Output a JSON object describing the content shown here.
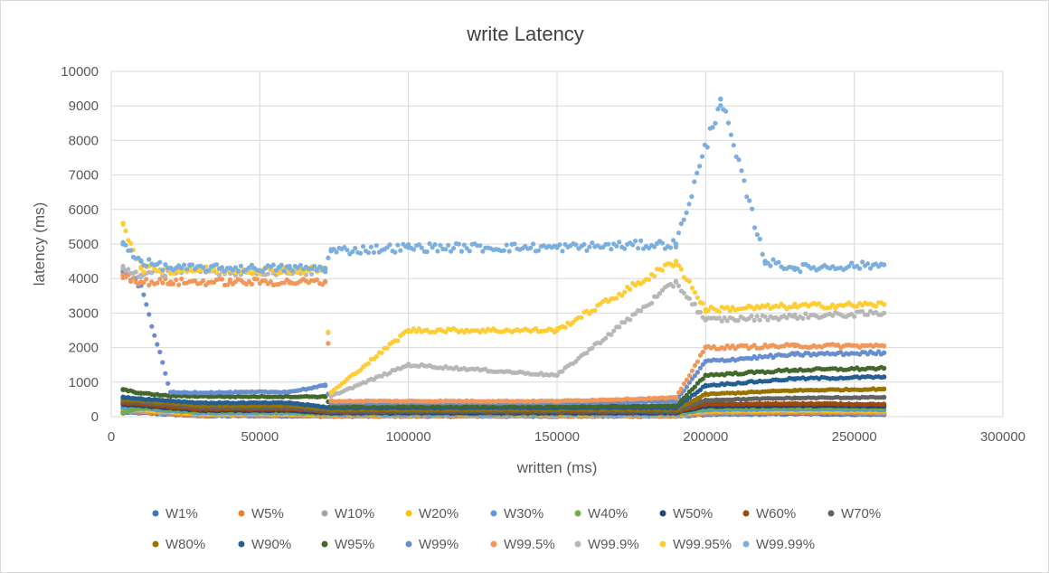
{
  "chart_data": {
    "type": "scatter",
    "title": "write Latency",
    "xlabel": "written (ms)",
    "ylabel": "latency (ms)",
    "xlim": [
      0,
      300000
    ],
    "ylim": [
      0,
      10000
    ],
    "x_ticks": [
      0,
      50000,
      100000,
      150000,
      200000,
      250000,
      300000
    ],
    "y_ticks": [
      0,
      1000,
      2000,
      3000,
      4000,
      5000,
      6000,
      7000,
      8000,
      9000,
      10000
    ],
    "grid": true,
    "legend_position": "bottom",
    "series": [
      {
        "name": "W1%",
        "color": "#4472C4",
        "points": [
          [
            4000,
            120
          ],
          [
            10000,
            110
          ],
          [
            30000,
            20
          ],
          [
            60000,
            20
          ],
          [
            74000,
            10
          ],
          [
            100000,
            10
          ],
          [
            150000,
            10
          ],
          [
            190000,
            10
          ],
          [
            200000,
            60
          ],
          [
            230000,
            80
          ],
          [
            260000,
            60
          ]
        ]
      },
      {
        "name": "W5%",
        "color": "#ED7D31",
        "points": [
          [
            4000,
            150
          ],
          [
            10000,
            130
          ],
          [
            30000,
            30
          ],
          [
            60000,
            30
          ],
          [
            74000,
            20
          ],
          [
            100000,
            20
          ],
          [
            150000,
            20
          ],
          [
            190000,
            20
          ],
          [
            200000,
            90
          ],
          [
            230000,
            110
          ],
          [
            260000,
            90
          ]
        ]
      },
      {
        "name": "W10%",
        "color": "#A5A5A5",
        "points": [
          [
            4000,
            180
          ],
          [
            10000,
            160
          ],
          [
            30000,
            50
          ],
          [
            60000,
            50
          ],
          [
            74000,
            30
          ],
          [
            100000,
            30
          ],
          [
            150000,
            30
          ],
          [
            190000,
            30
          ],
          [
            200000,
            120
          ],
          [
            230000,
            140
          ],
          [
            260000,
            120
          ]
        ]
      },
      {
        "name": "W20%",
        "color": "#FFC000",
        "points": [
          [
            4000,
            220
          ],
          [
            10000,
            200
          ],
          [
            30000,
            80
          ],
          [
            60000,
            80
          ],
          [
            74000,
            50
          ],
          [
            100000,
            50
          ],
          [
            150000,
            50
          ],
          [
            190000,
            50
          ],
          [
            200000,
            160
          ],
          [
            230000,
            180
          ],
          [
            260000,
            160
          ]
        ]
      },
      {
        "name": "W30%",
        "color": "#5B9BD5",
        "points": [
          [
            4000,
            260
          ],
          [
            10000,
            240
          ],
          [
            30000,
            110
          ],
          [
            60000,
            110
          ],
          [
            74000,
            70
          ],
          [
            100000,
            70
          ],
          [
            150000,
            70
          ],
          [
            190000,
            70
          ],
          [
            200000,
            200
          ],
          [
            230000,
            220
          ],
          [
            260000,
            200
          ]
        ]
      },
      {
        "name": "W40%",
        "color": "#70AD47",
        "points": [
          [
            4000,
            100
          ],
          [
            10000,
            280
          ],
          [
            30000,
            140
          ],
          [
            60000,
            140
          ],
          [
            74000,
            90
          ],
          [
            100000,
            90
          ],
          [
            150000,
            90
          ],
          [
            190000,
            90
          ],
          [
            200000,
            250
          ],
          [
            230000,
            270
          ],
          [
            260000,
            250
          ]
        ]
      },
      {
        "name": "W50%",
        "color": "#264478",
        "points": [
          [
            4000,
            350
          ],
          [
            10000,
            320
          ],
          [
            30000,
            180
          ],
          [
            60000,
            180
          ],
          [
            74000,
            110
          ],
          [
            100000,
            110
          ],
          [
            150000,
            110
          ],
          [
            190000,
            110
          ],
          [
            200000,
            300
          ],
          [
            230000,
            320
          ],
          [
            260000,
            300
          ]
        ]
      },
      {
        "name": "W60%",
        "color": "#9E480E",
        "points": [
          [
            4000,
            400
          ],
          [
            10000,
            370
          ],
          [
            30000,
            220
          ],
          [
            60000,
            220
          ],
          [
            74000,
            140
          ],
          [
            100000,
            140
          ],
          [
            150000,
            140
          ],
          [
            190000,
            140
          ],
          [
            200000,
            360
          ],
          [
            230000,
            380
          ],
          [
            260000,
            360
          ]
        ]
      },
      {
        "name": "W70%",
        "color": "#636363",
        "points": [
          [
            4000,
            450
          ],
          [
            10000,
            420
          ],
          [
            30000,
            270
          ],
          [
            60000,
            270
          ],
          [
            74000,
            170
          ],
          [
            100000,
            170
          ],
          [
            150000,
            170
          ],
          [
            190000,
            170
          ],
          [
            200000,
            480
          ],
          [
            230000,
            540
          ],
          [
            260000,
            560
          ]
        ]
      },
      {
        "name": "W80%",
        "color": "#997300",
        "points": [
          [
            4000,
            500
          ],
          [
            10000,
            470
          ],
          [
            30000,
            330
          ],
          [
            60000,
            330
          ],
          [
            74000,
            210
          ],
          [
            100000,
            210
          ],
          [
            150000,
            210
          ],
          [
            190000,
            210
          ],
          [
            200000,
            650
          ],
          [
            230000,
            760
          ],
          [
            260000,
            800
          ]
        ]
      },
      {
        "name": "W90%",
        "color": "#255E91",
        "points": [
          [
            4000,
            560
          ],
          [
            10000,
            520
          ],
          [
            30000,
            400
          ],
          [
            60000,
            400
          ],
          [
            74000,
            260
          ],
          [
            100000,
            260
          ],
          [
            150000,
            260
          ],
          [
            190000,
            260
          ],
          [
            200000,
            900
          ],
          [
            230000,
            1100
          ],
          [
            260000,
            1150
          ]
        ]
      },
      {
        "name": "W95%",
        "color": "#43682B",
        "points": [
          [
            4000,
            780
          ],
          [
            10000,
            680
          ],
          [
            20000,
            600
          ],
          [
            40000,
            580
          ],
          [
            72000,
            580
          ],
          [
            74000,
            310
          ],
          [
            100000,
            310
          ],
          [
            150000,
            310
          ],
          [
            190000,
            310
          ],
          [
            200000,
            1200
          ],
          [
            230000,
            1350
          ],
          [
            260000,
            1400
          ]
        ]
      },
      {
        "name": "W99%",
        "color": "#698ED0",
        "points": [
          [
            4000,
            4200
          ],
          [
            10000,
            3800
          ],
          [
            20000,
            700
          ],
          [
            40000,
            700
          ],
          [
            60000,
            720
          ],
          [
            72000,
            900
          ],
          [
            74000,
            400
          ],
          [
            100000,
            400
          ],
          [
            150000,
            400
          ],
          [
            190000,
            450
          ],
          [
            200000,
            1600
          ],
          [
            230000,
            1800
          ],
          [
            260000,
            1850
          ]
        ]
      },
      {
        "name": "W99.5%",
        "color": "#F1975A",
        "points": [
          [
            4000,
            4100
          ],
          [
            10000,
            3900
          ],
          [
            20000,
            3900
          ],
          [
            40000,
            3900
          ],
          [
            60000,
            3900
          ],
          [
            72000,
            3900
          ],
          [
            74000,
            450
          ],
          [
            100000,
            450
          ],
          [
            150000,
            450
          ],
          [
            190000,
            550
          ],
          [
            200000,
            2000
          ],
          [
            230000,
            2050
          ],
          [
            260000,
            2050
          ]
        ]
      },
      {
        "name": "W99.9%",
        "color": "#B7B7B7",
        "points": [
          [
            4000,
            4300
          ],
          [
            10000,
            4100
          ],
          [
            20000,
            4200
          ],
          [
            40000,
            4200
          ],
          [
            60000,
            4200
          ],
          [
            72000,
            4200
          ],
          [
            74000,
            600
          ],
          [
            100000,
            1500
          ],
          [
            150000,
            1200
          ],
          [
            190000,
            3900
          ],
          [
            200000,
            2800
          ],
          [
            230000,
            2900
          ],
          [
            260000,
            3000
          ]
        ]
      },
      {
        "name": "W99.95%",
        "color": "#FFCD33",
        "points": [
          [
            4000,
            5600
          ],
          [
            10000,
            4300
          ],
          [
            20000,
            4250
          ],
          [
            40000,
            4250
          ],
          [
            60000,
            4250
          ],
          [
            72000,
            4250
          ],
          [
            74000,
            700
          ],
          [
            100000,
            2500
          ],
          [
            150000,
            2500
          ],
          [
            190000,
            4500
          ],
          [
            200000,
            3100
          ],
          [
            230000,
            3200
          ],
          [
            260000,
            3250
          ]
        ]
      },
      {
        "name": "W99.99%",
        "color": "#7CAFDD",
        "points": [
          [
            4000,
            5000
          ],
          [
            10000,
            4500
          ],
          [
            20000,
            4300
          ],
          [
            40000,
            4300
          ],
          [
            60000,
            4300
          ],
          [
            72000,
            4300
          ],
          [
            74000,
            4800
          ],
          [
            100000,
            4900
          ],
          [
            150000,
            4900
          ],
          [
            190000,
            5000
          ],
          [
            205000,
            9200
          ],
          [
            220000,
            4500
          ],
          [
            230000,
            4300
          ],
          [
            260000,
            4400
          ]
        ]
      }
    ]
  }
}
